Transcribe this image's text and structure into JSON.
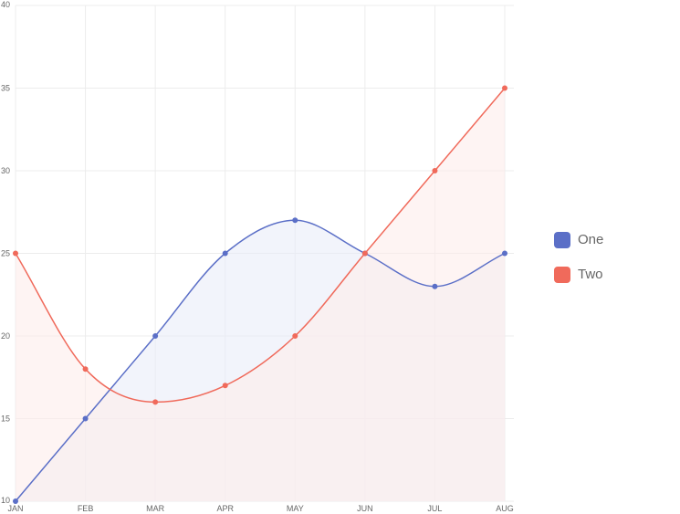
{
  "chart_data": {
    "type": "line",
    "categories": [
      "JAN",
      "FEB",
      "MAR",
      "APR",
      "MAY",
      "JUN",
      "JUL",
      "AUG"
    ],
    "series": [
      {
        "name": "One",
        "values": [
          10,
          15,
          20,
          25,
          27,
          25,
          23,
          25
        ],
        "color": "#5b6fc7",
        "fill": "#e9ecf8"
      },
      {
        "name": "Two",
        "values": [
          25,
          18,
          16,
          17,
          20,
          25,
          30,
          35
        ],
        "color": "#f06a5b",
        "fill": "#fdeceb"
      }
    ],
    "ylim": [
      10,
      40
    ],
    "yticks": [
      10,
      15,
      20,
      25,
      30,
      35,
      40
    ],
    "area_fill": true,
    "smooth": true,
    "grid": true,
    "legend_position": "right"
  }
}
